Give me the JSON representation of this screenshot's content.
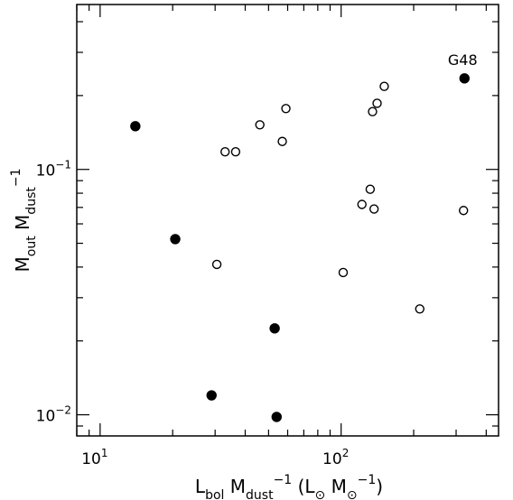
{
  "chart_data": {
    "type": "scatter",
    "x_scale": "log",
    "y_scale": "log",
    "xlim": [
      8,
      450
    ],
    "ylim": [
      0.0082,
      0.47
    ],
    "x_major_ticks": [
      {
        "value": 10,
        "base": "10",
        "exp": "1"
      },
      {
        "value": 100,
        "base": "10",
        "exp": "2"
      }
    ],
    "y_major_ticks": [
      {
        "value": 0.1,
        "base": "10",
        "exp": "−1"
      },
      {
        "value": 0.01,
        "base": "10",
        "exp": "−2"
      }
    ],
    "xlabel": {
      "parts": [
        {
          "t": "L",
          "s": "n"
        },
        {
          "t": "bol",
          "s": "sub"
        },
        {
          "t": " M",
          "s": "n"
        },
        {
          "t": "dust",
          "s": "sub"
        },
        {
          "t": "−1",
          "s": "sup"
        },
        {
          "t": " (L",
          "s": "n"
        },
        {
          "t": "⊙",
          "s": "sub"
        },
        {
          "t": " M",
          "s": "n"
        },
        {
          "t": "⊙",
          "s": "sub"
        },
        {
          "t": "−1",
          "s": "sup"
        },
        {
          "t": ")",
          "s": "n"
        }
      ]
    },
    "ylabel": {
      "parts": [
        {
          "t": "M",
          "s": "n"
        },
        {
          "t": "out",
          "s": "sub"
        },
        {
          "t": " M",
          "s": "n"
        },
        {
          "t": "dust",
          "s": "sub"
        },
        {
          "t": "−1",
          "s": "sup"
        }
      ]
    },
    "series": [
      {
        "marker": "filled-circle",
        "points": [
          {
            "x": 14,
            "y": 0.15
          },
          {
            "x": 20.5,
            "y": 0.052
          },
          {
            "x": 29,
            "y": 0.012
          },
          {
            "x": 53,
            "y": 0.0225
          },
          {
            "x": 54,
            "y": 0.0098
          },
          {
            "x": 325,
            "y": 0.235
          }
        ]
      },
      {
        "marker": "open-circle",
        "points": [
          {
            "x": 30.5,
            "y": 0.041
          },
          {
            "x": 33,
            "y": 0.118
          },
          {
            "x": 36.5,
            "y": 0.118
          },
          {
            "x": 46,
            "y": 0.152
          },
          {
            "x": 57,
            "y": 0.13
          },
          {
            "x": 59,
            "y": 0.177
          },
          {
            "x": 102,
            "y": 0.038
          },
          {
            "x": 122,
            "y": 0.072
          },
          {
            "x": 132,
            "y": 0.083
          },
          {
            "x": 135,
            "y": 0.172
          },
          {
            "x": 137,
            "y": 0.069
          },
          {
            "x": 141,
            "y": 0.186
          },
          {
            "x": 151,
            "y": 0.218
          },
          {
            "x": 212,
            "y": 0.027
          },
          {
            "x": 322,
            "y": 0.068
          }
        ]
      }
    ],
    "annotations": [
      {
        "text": "G48",
        "x": 325,
        "y": 0.235
      }
    ]
  }
}
